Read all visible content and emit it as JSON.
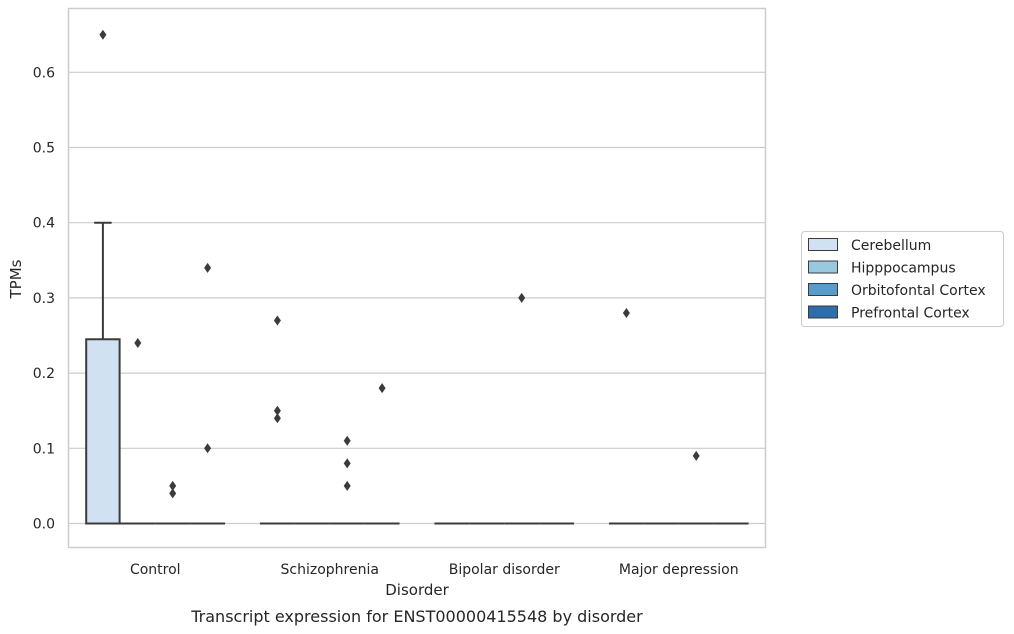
{
  "chart_data": {
    "type": "box",
    "caption": "Transcript expression for ENST00000415548 by disorder",
    "xlabel": "Disorder",
    "ylabel": "TPMs",
    "categories": [
      "Control",
      "Schizophrenia",
      "Bipolar disorder",
      "Major depression"
    ],
    "ylim": [
      -0.033,
      0.683
    ],
    "yticks": [
      0.0,
      0.1,
      0.2,
      0.3,
      0.4,
      0.5,
      0.6
    ],
    "ytick_labels": [
      "0.0",
      "0.1",
      "0.2",
      "0.3",
      "0.4",
      "0.5",
      "0.6"
    ],
    "grid": true,
    "legend_placement": "center-right",
    "series": [
      {
        "name": "Cerebellum",
        "color": "#d0e1f2",
        "boxes": [
          {
            "q1": 0.0,
            "median": 0.0,
            "q3": 0.245,
            "whisker_low": 0.0,
            "whisker_high": 0.4,
            "outliers": [
              0.65
            ]
          },
          {
            "q1": 0.0,
            "median": 0.0,
            "q3": 0.0,
            "whisker_low": 0.0,
            "whisker_high": 0.0,
            "outliers": [
              0.27,
              0.15,
              0.14
            ]
          },
          {
            "q1": 0.0,
            "median": 0.0,
            "q3": 0.0,
            "whisker_low": 0.0,
            "whisker_high": 0.0,
            "outliers": []
          },
          {
            "q1": 0.0,
            "median": 0.0,
            "q3": 0.0,
            "whisker_low": 0.0,
            "whisker_high": 0.0,
            "outliers": [
              0.28
            ]
          }
        ]
      },
      {
        "name": "Hipppocampus",
        "color": "#9ac8e0",
        "boxes": [
          {
            "q1": 0.0,
            "median": 0.0,
            "q3": 0.0,
            "whisker_low": 0.0,
            "whisker_high": 0.0,
            "outliers": [
              0.24
            ]
          },
          {
            "q1": 0.0,
            "median": 0.0,
            "q3": 0.0,
            "whisker_low": 0.0,
            "whisker_high": 0.0,
            "outliers": []
          },
          {
            "q1": 0.0,
            "median": 0.0,
            "q3": 0.0,
            "whisker_low": 0.0,
            "whisker_high": 0.0,
            "outliers": []
          },
          {
            "q1": 0.0,
            "median": 0.0,
            "q3": 0.0,
            "whisker_low": 0.0,
            "whisker_high": 0.0,
            "outliers": []
          }
        ]
      },
      {
        "name": "Orbitofontal Cortex",
        "color": "#5a9bc9",
        "boxes": [
          {
            "q1": 0.0,
            "median": 0.0,
            "q3": 0.0,
            "whisker_low": 0.0,
            "whisker_high": 0.0,
            "outliers": [
              0.05,
              0.04
            ]
          },
          {
            "q1": 0.0,
            "median": 0.0,
            "q3": 0.0,
            "whisker_low": 0.0,
            "whisker_high": 0.0,
            "outliers": [
              0.11,
              0.08,
              0.05
            ]
          },
          {
            "q1": 0.0,
            "median": 0.0,
            "q3": 0.0,
            "whisker_low": 0.0,
            "whisker_high": 0.0,
            "outliers": [
              0.3
            ]
          },
          {
            "q1": 0.0,
            "median": 0.0,
            "q3": 0.0,
            "whisker_low": 0.0,
            "whisker_high": 0.0,
            "outliers": [
              0.09
            ]
          }
        ]
      },
      {
        "name": "Prefrontal Cortex",
        "color": "#2b6eab",
        "boxes": [
          {
            "q1": 0.0,
            "median": 0.0,
            "q3": 0.0,
            "whisker_low": 0.0,
            "whisker_high": 0.0,
            "outliers": [
              0.34,
              0.1
            ]
          },
          {
            "q1": 0.0,
            "median": 0.0,
            "q3": 0.0,
            "whisker_low": 0.0,
            "whisker_high": 0.0,
            "outliers": [
              0.18
            ]
          },
          {
            "q1": 0.0,
            "median": 0.0,
            "q3": 0.0,
            "whisker_low": 0.0,
            "whisker_high": 0.0,
            "outliers": []
          },
          {
            "q1": 0.0,
            "median": 0.0,
            "q3": 0.0,
            "whisker_low": 0.0,
            "whisker_high": 0.0,
            "outliers": []
          }
        ]
      }
    ]
  }
}
